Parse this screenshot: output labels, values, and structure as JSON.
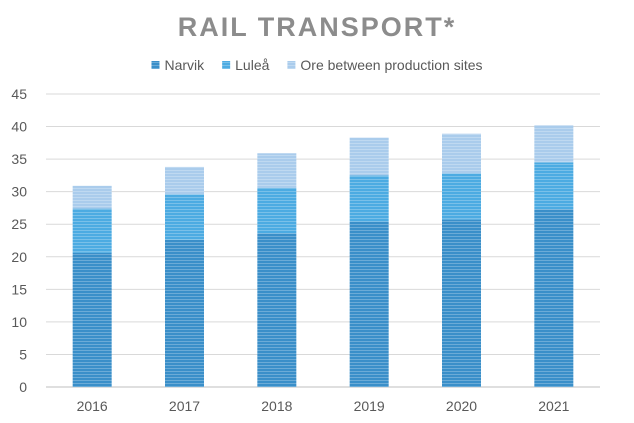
{
  "chart_data": {
    "type": "bar",
    "stacked": true,
    "title": "RAIL TRANSPORT*",
    "xlabel": "",
    "ylabel": "",
    "categories": [
      "2016",
      "2017",
      "2018",
      "2019",
      "2020",
      "2021"
    ],
    "series": [
      {
        "name": "Narvik",
        "values": [
          20.6,
          22.6,
          23.6,
          25.4,
          25.7,
          27.3
        ],
        "color": "#3a8fc9"
      },
      {
        "name": "Luleå",
        "values": [
          6.8,
          7.0,
          7.0,
          7.1,
          7.1,
          7.2
        ],
        "color": "#4cabe2"
      },
      {
        "name": "Ore between production sites",
        "values": [
          3.5,
          4.2,
          5.3,
          5.8,
          6.1,
          5.7
        ],
        "color": "#aaccec"
      }
    ],
    "ylim": [
      0,
      45
    ],
    "yticks": [
      0,
      5,
      10,
      15,
      20,
      25,
      30,
      35,
      40,
      45
    ],
    "grid": true,
    "legend_position": "top"
  }
}
